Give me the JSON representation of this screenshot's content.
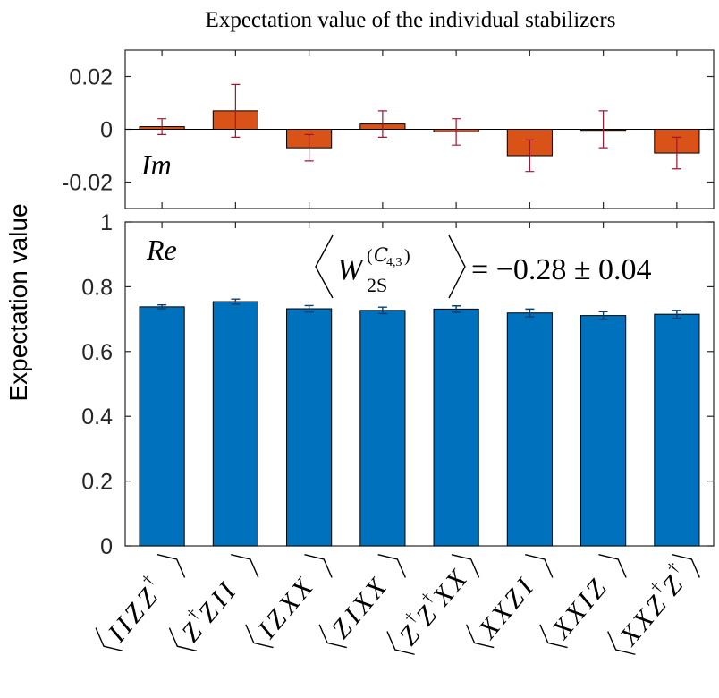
{
  "chart_data": [
    {
      "type": "bar",
      "title": "Expectation value of the individual stabilizers",
      "panel_label": "Im",
      "ylim": [
        -0.03,
        0.03
      ],
      "yticks": [
        0.02,
        0,
        -0.02
      ],
      "ytick_labels": [
        "0.02",
        "0",
        "-0.02"
      ],
      "categories": [
        "IIZZ†",
        "Z†ZII",
        "IZXX",
        "ZIXX",
        "Z†Z†XX",
        "XXZI",
        "XXIZ",
        "XXZ†Z†"
      ],
      "values": [
        0.001,
        0.007,
        -0.007,
        0.002,
        -0.001,
        -0.01,
        0.0,
        -0.009
      ],
      "errors": [
        0.003,
        0.01,
        0.005,
        0.005,
        0.005,
        0.006,
        0.007,
        0.006
      ],
      "color": "#D95319"
    },
    {
      "type": "bar",
      "panel_label": "Re",
      "ylabel": "Expectation value",
      "ylim": [
        0,
        1
      ],
      "yticks": [
        1,
        0.8,
        0.6,
        0.4,
        0.2,
        0
      ],
      "ytick_labels": [
        "1",
        "0.8",
        "0.6",
        "0.4",
        "0.2",
        "0"
      ],
      "categories": [
        "IIZZ†",
        "Z†ZII",
        "IZXX",
        "ZIXX",
        "Z†Z†XX",
        "XXZI",
        "XXIZ",
        "XXZ†Z†"
      ],
      "values": [
        0.738,
        0.754,
        0.732,
        0.727,
        0.731,
        0.719,
        0.711,
        0.715
      ],
      "errors": [
        0.006,
        0.008,
        0.01,
        0.01,
        0.01,
        0.012,
        0.012,
        0.012
      ],
      "color": "#0072BD",
      "annotation": {
        "operator": "W",
        "subscript": "2S",
        "superscript_set": "C",
        "superscript_indices": "4,3",
        "value_text": "= −0.28 ± 0.04"
      }
    }
  ],
  "category_labels": [
    {
      "parts": [
        {
          "t": "I"
        },
        {
          "t": "I"
        },
        {
          "t": "Z"
        },
        {
          "t": "Z",
          "d": true
        }
      ]
    },
    {
      "parts": [
        {
          "t": "Z",
          "d": true
        },
        {
          "t": "Z"
        },
        {
          "t": "I"
        },
        {
          "t": "I"
        }
      ]
    },
    {
      "parts": [
        {
          "t": "I"
        },
        {
          "t": "Z"
        },
        {
          "t": "X"
        },
        {
          "t": "X"
        }
      ]
    },
    {
      "parts": [
        {
          "t": "Z"
        },
        {
          "t": "I"
        },
        {
          "t": "X"
        },
        {
          "t": "X"
        }
      ]
    },
    {
      "parts": [
        {
          "t": "Z",
          "d": true
        },
        {
          "t": "Z",
          "d": true
        },
        {
          "t": "X"
        },
        {
          "t": "X"
        }
      ]
    },
    {
      "parts": [
        {
          "t": "X"
        },
        {
          "t": "X"
        },
        {
          "t": "Z"
        },
        {
          "t": "I"
        }
      ]
    },
    {
      "parts": [
        {
          "t": "X"
        },
        {
          "t": "X"
        },
        {
          "t": "I"
        },
        {
          "t": "Z"
        }
      ]
    },
    {
      "parts": [
        {
          "t": "X"
        },
        {
          "t": "X"
        },
        {
          "t": "Z",
          "d": true
        },
        {
          "t": "Z",
          "d": true
        }
      ]
    }
  ],
  "colors": {
    "imag": "#D95319",
    "real": "#0072BD",
    "imag_err": "#A2142F",
    "real_err": "#073F73"
  }
}
